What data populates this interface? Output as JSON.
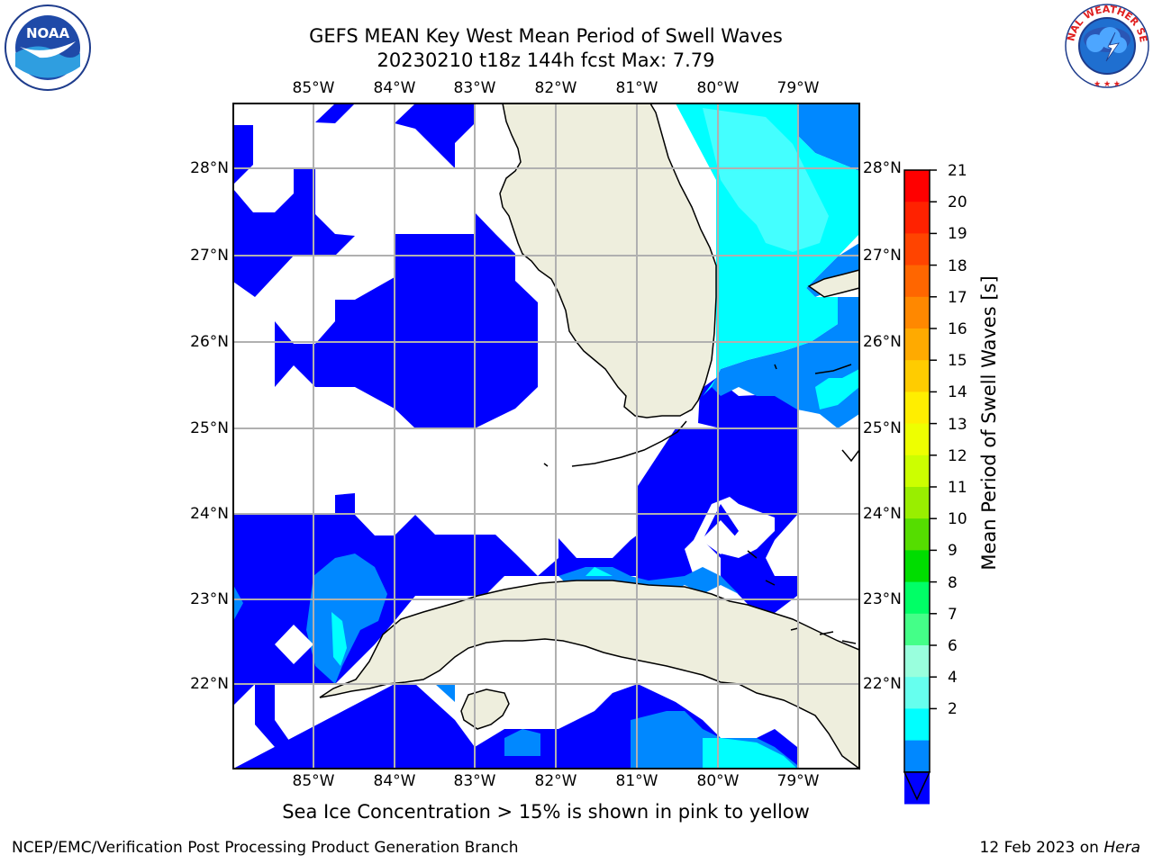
{
  "title_line1": "GEFS MEAN Key West Mean Period of Swell Waves",
  "title_line2": "20230210 t18z 144h fcst   Max: 7.79",
  "lon_labels": [
    "85°W",
    "84°W",
    "83°W",
    "82°W",
    "81°W",
    "80°W",
    "79°W"
  ],
  "lat_labels": [
    "28°N",
    "27°N",
    "26°N",
    "25°N",
    "24°N",
    "23°N",
    "22°N"
  ],
  "colorbar": {
    "title": "Mean Period of Swell Waves [s]",
    "ticks": [
      "21",
      "20",
      "19",
      "18",
      "17",
      "16",
      "15",
      "14",
      "13",
      "12",
      "11",
      "10",
      "9",
      "8",
      "7",
      "6",
      "4",
      "2"
    ],
    "colors": [
      "#ff0000",
      "#ff2200",
      "#ff4400",
      "#ff6600",
      "#ff8800",
      "#ffaa00",
      "#ffcc00",
      "#ffee00",
      "#eeff00",
      "#ccff00",
      "#99ee00",
      "#55dd00",
      "#00dd00",
      "#00ff66",
      "#44ff88",
      "#99ffdd",
      "#66ffee",
      "#00ffff",
      "#0088ff",
      "#0000ff"
    ],
    "extend": "min"
  },
  "note": "Sea Ice Concentration > 15% is shown in pink to yellow",
  "footer_left": "NCEP/EMC/Verification Post Processing Product Generation Branch",
  "footer_right_prefix": "12 Feb 2023 on ",
  "footer_right_host": "Hera",
  "logo_noaa_text": "NOAA",
  "logo_nws_text": "NATIONAL WEATHER SERVICE",
  "land_color": "#eeeedd",
  "palette": {
    "deep_blue": "#0000ff",
    "mid_blue": "#0088ff",
    "cyan": "#00ffff",
    "light_cyan": "#44ffff"
  }
}
